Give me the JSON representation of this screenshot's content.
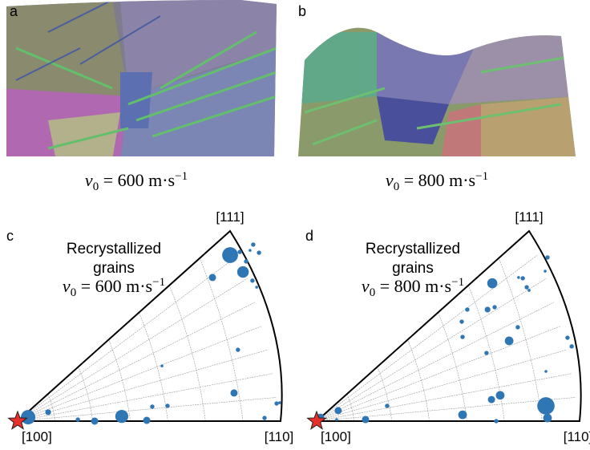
{
  "maps": [
    {
      "label": "a",
      "caption": {
        "var": "v",
        "sub": "0",
        "text": " = 600 m·s",
        "sup": "−1"
      }
    },
    {
      "label": "b",
      "caption": {
        "var": "v",
        "sub": "0",
        "text": " = 800 m·s",
        "sup": "−1"
      }
    }
  ],
  "chart_data": [
    {
      "type": "scatter",
      "panel_label": "c",
      "annotation": [
        "Recrystallized",
        "grains"
      ],
      "caption": {
        "var": "v",
        "sub": "0",
        "text": " = 600 m·s",
        "sup": "−1"
      },
      "corners": [
        "[100]",
        "[110]",
        "[111]"
      ],
      "color": "#2f77b4",
      "xlim": [
        0,
        1
      ],
      "ylim": [
        0,
        1
      ],
      "x": [
        0.04,
        0.116,
        0.229,
        0.293,
        0.396,
        0.491,
        0.512,
        0.57,
        0.549,
        0.823,
        0.838,
        0.741,
        0.808,
        0.857,
        0.845,
        0.869,
        0.896,
        0.884,
        0.918,
        0.893,
        0.909,
        0.985,
        0.997,
        0.939
      ],
      "y": [
        0.015,
        0.034,
        0.006,
        0.0,
        0.018,
        0.003,
        0.055,
        0.058,
        0.21,
        0.107,
        0.271,
        0.546,
        0.631,
        0.567,
        0.643,
        0.607,
        0.671,
        0.649,
        0.64,
        0.534,
        0.509,
        0.067,
        0.07,
        0.012
      ],
      "sizes": [
        10,
        4,
        3,
        5,
        9,
        5,
        3,
        3,
        2,
        5,
        3,
        5,
        11,
        8,
        3,
        3,
        3,
        2,
        3,
        3,
        2,
        3,
        2,
        3
      ]
    },
    {
      "type": "scatter",
      "panel_label": "d",
      "annotation": [
        "Recrystallized",
        "grains"
      ],
      "caption": {
        "var": "v",
        "sub": "0",
        "text": " = 800 m·s",
        "sup": "−1"
      },
      "corners": [
        "[100]",
        "[110]",
        "[111]"
      ],
      "color": "#2f77b4",
      "xlim": [
        0,
        1
      ],
      "ylim": [
        0,
        1
      ],
      "x": [
        0.015,
        0.082,
        0.186,
        0.268,
        0.555,
        0.665,
        0.698,
        0.683,
        0.872,
        0.878,
        0.872,
        0.732,
        0.646,
        0.552,
        0.555,
        0.573,
        0.65,
        0.677,
        0.668,
        0.765,
        0.954,
        0.97,
        0.784,
        0.799,
        0.808,
        0.878,
        0.869,
        0.768,
        0.076
      ],
      "y": [
        0.015,
        0.04,
        0.006,
        0.058,
        0.024,
        0.082,
        0.098,
        0.0,
        0.058,
        0.012,
        0.189,
        0.305,
        0.259,
        0.378,
        0.32,
        0.424,
        0.424,
        0.433,
        0.524,
        0.357,
        0.317,
        0.284,
        0.543,
        0.509,
        0.497,
        0.622,
        0.57,
        0.546,
        0.006
      ],
      "sizes": [
        5,
        5,
        5,
        3,
        6,
        5,
        6,
        3,
        12,
        6,
        2,
        6,
        3,
        3,
        3,
        3,
        4,
        3,
        7,
        3,
        3,
        3,
        3,
        3,
        2,
        3,
        2,
        2,
        2
      ]
    }
  ]
}
